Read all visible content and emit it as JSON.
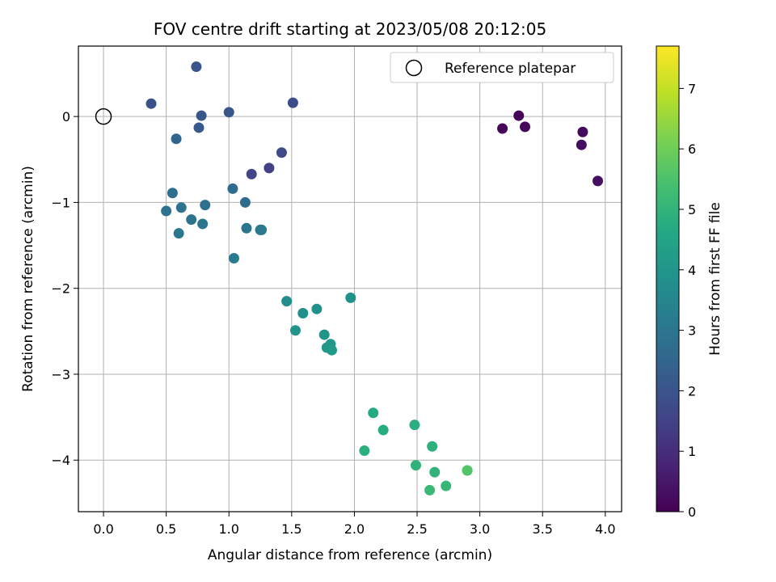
{
  "chart_data": {
    "type": "scatter",
    "title": "FOV centre drift starting at 2023/05/08 20:12:05",
    "xlabel": "Angular distance from reference (arcmin)",
    "ylabel": "Rotation from reference (arcmin)",
    "colorbar_label": "Hours from first FF file",
    "xlim": [
      -0.2,
      4.13
    ],
    "ylim": [
      -4.6,
      0.82
    ],
    "clim": [
      0,
      7.7
    ],
    "colormap": "viridis",
    "grid": true,
    "legend_position": "top-right",
    "x_ticks": [
      0.0,
      0.5,
      1.0,
      1.5,
      2.0,
      2.5,
      3.0,
      3.5,
      4.0
    ],
    "x_tick_labels": [
      "0.0",
      "0.5",
      "1.0",
      "1.5",
      "2.0",
      "2.5",
      "3.0",
      "3.5",
      "4.0"
    ],
    "y_ticks": [
      0,
      -1,
      -2,
      -3,
      -4
    ],
    "y_tick_labels": [
      "0",
      "−1",
      "−2",
      "−3",
      "−4"
    ],
    "c_ticks": [
      0,
      1,
      2,
      3,
      4,
      5,
      6,
      7
    ],
    "c_tick_labels": [
      "0",
      "1",
      "2",
      "3",
      "4",
      "5",
      "6",
      "7"
    ],
    "reference": {
      "name": "Reference platepar",
      "x": 0.0,
      "y": 0.0
    },
    "points": [
      {
        "x": 3.31,
        "y": 0.01,
        "c": 0.05
      },
      {
        "x": 3.18,
        "y": -0.14,
        "c": 0.1
      },
      {
        "x": 3.36,
        "y": -0.12,
        "c": 0.15
      },
      {
        "x": 3.82,
        "y": -0.18,
        "c": 0.2
      },
      {
        "x": 3.81,
        "y": -0.33,
        "c": 0.25
      },
      {
        "x": 3.94,
        "y": -0.75,
        "c": 0.3
      },
      {
        "x": 1.32,
        "y": -0.6,
        "c": 1.5
      },
      {
        "x": 1.18,
        "y": -0.67,
        "c": 1.6
      },
      {
        "x": 1.42,
        "y": -0.42,
        "c": 1.7
      },
      {
        "x": 1.51,
        "y": 0.16,
        "c": 1.8
      },
      {
        "x": 0.38,
        "y": 0.15,
        "c": 1.9
      },
      {
        "x": 0.74,
        "y": 0.58,
        "c": 2.0
      },
      {
        "x": 1.0,
        "y": 0.05,
        "c": 2.05
      },
      {
        "x": 0.78,
        "y": 0.01,
        "c": 2.1
      },
      {
        "x": 0.76,
        "y": -0.13,
        "c": 2.15
      },
      {
        "x": 0.58,
        "y": -0.26,
        "c": 2.5
      },
      {
        "x": 1.03,
        "y": -0.84,
        "c": 2.7
      },
      {
        "x": 1.13,
        "y": -1.0,
        "c": 2.75
      },
      {
        "x": 0.55,
        "y": -0.89,
        "c": 2.8
      },
      {
        "x": 0.81,
        "y": -1.03,
        "c": 2.85
      },
      {
        "x": 0.62,
        "y": -1.06,
        "c": 2.9
      },
      {
        "x": 0.5,
        "y": -1.1,
        "c": 2.9
      },
      {
        "x": 0.7,
        "y": -1.2,
        "c": 2.95
      },
      {
        "x": 0.79,
        "y": -1.25,
        "c": 3.0
      },
      {
        "x": 1.14,
        "y": -1.3,
        "c": 3.0
      },
      {
        "x": 1.25,
        "y": -1.32,
        "c": 3.05
      },
      {
        "x": 1.26,
        "y": -1.32,
        "c": 3.1
      },
      {
        "x": 0.6,
        "y": -1.36,
        "c": 3.05
      },
      {
        "x": 1.04,
        "y": -1.65,
        "c": 3.15
      },
      {
        "x": 1.46,
        "y": -2.15,
        "c": 3.7
      },
      {
        "x": 1.59,
        "y": -2.29,
        "c": 3.8
      },
      {
        "x": 1.7,
        "y": -2.24,
        "c": 3.85
      },
      {
        "x": 1.97,
        "y": -2.11,
        "c": 3.9
      },
      {
        "x": 1.53,
        "y": -2.49,
        "c": 3.95
      },
      {
        "x": 1.76,
        "y": -2.54,
        "c": 4.0
      },
      {
        "x": 1.81,
        "y": -2.65,
        "c": 4.05
      },
      {
        "x": 1.78,
        "y": -2.69,
        "c": 4.1
      },
      {
        "x": 1.82,
        "y": -2.72,
        "c": 4.15
      },
      {
        "x": 2.15,
        "y": -3.45,
        "c": 4.7
      },
      {
        "x": 2.23,
        "y": -3.65,
        "c": 4.75
      },
      {
        "x": 2.48,
        "y": -3.59,
        "c": 4.8
      },
      {
        "x": 2.08,
        "y": -3.89,
        "c": 4.85
      },
      {
        "x": 2.62,
        "y": -3.84,
        "c": 4.9
      },
      {
        "x": 2.49,
        "y": -4.06,
        "c": 4.95
      },
      {
        "x": 2.64,
        "y": -4.14,
        "c": 5.0
      },
      {
        "x": 2.9,
        "y": -4.12,
        "c": 5.05
      },
      {
        "x": 2.9,
        "y": -4.12,
        "c": 5.6
      },
      {
        "x": 2.73,
        "y": -4.3,
        "c": 5.1
      },
      {
        "x": 2.6,
        "y": -4.35,
        "c": 5.15
      }
    ]
  }
}
